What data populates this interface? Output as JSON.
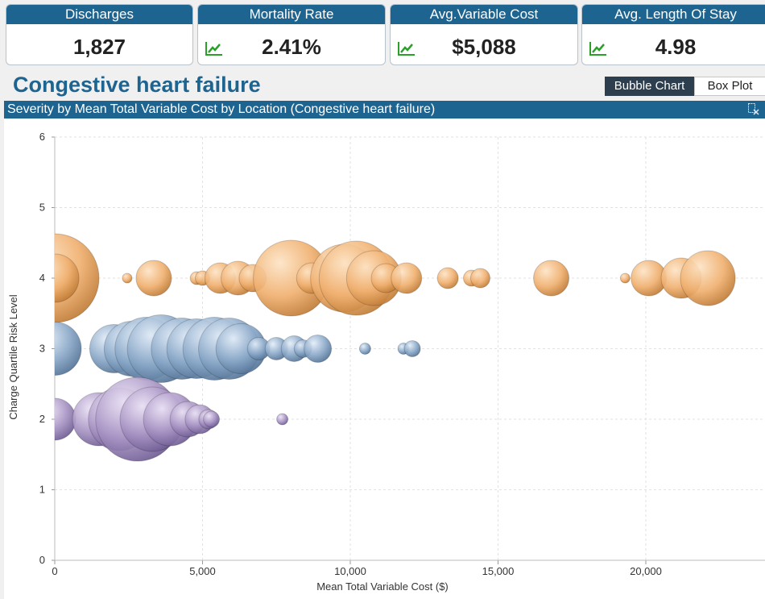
{
  "kpis": [
    {
      "label": "Discharges",
      "value": "1,827",
      "icon": null
    },
    {
      "label": "Mortality Rate",
      "value": "2.41%",
      "icon": "trend-up-icon"
    },
    {
      "label": "Avg.Variable Cost",
      "value": "$5,088",
      "icon": "trend-up-icon"
    },
    {
      "label": "Avg. Length Of Stay",
      "value": "4.98",
      "icon": "trend-up-icon"
    }
  ],
  "page_title": "Congestive heart failure",
  "view_toggle": {
    "bubble": "Bubble Chart",
    "box": "Box Plot",
    "active": "bubble"
  },
  "panel_title": "Severity by Mean Total Variable Cost by Location (Congestive heart failure)",
  "colors": {
    "accent": "#1d6490",
    "series4": "#f0b070",
    "series3": "#8aa8c8",
    "series2": "#a894c4",
    "trend": "#2aa02a"
  },
  "chart_data": {
    "type": "scatter",
    "title": "",
    "xlabel": "Mean Total Variable Cost ($)",
    "ylabel": "Charge Quartile Risk Level",
    "xlim": [
      0,
      24000
    ],
    "ylim": [
      0,
      6
    ],
    "xticks": [
      "0",
      "5,000",
      "10,000",
      "15,000",
      "20,000"
    ],
    "xtick_values": [
      0,
      5000,
      10000,
      15000,
      20000
    ],
    "yticks": [
      "0",
      "1",
      "2",
      "3",
      "4",
      "5",
      "6"
    ],
    "grid": true,
    "series": [
      {
        "level": 4,
        "color": "#f0b070",
        "points": [
          {
            "x": 0,
            "r": 55
          },
          {
            "x": 0,
            "r": 30
          },
          {
            "x": 2450,
            "r": 6
          },
          {
            "x": 3350,
            "r": 22
          },
          {
            "x": 4800,
            "r": 8
          },
          {
            "x": 5000,
            "r": 9
          },
          {
            "x": 5600,
            "r": 19
          },
          {
            "x": 6200,
            "r": 21
          },
          {
            "x": 6700,
            "r": 17
          },
          {
            "x": 8000,
            "r": 47
          },
          {
            "x": 8700,
            "r": 19
          },
          {
            "x": 9800,
            "r": 42
          },
          {
            "x": 10200,
            "r": 46
          },
          {
            "x": 10800,
            "r": 34
          },
          {
            "x": 11200,
            "r": 18
          },
          {
            "x": 11900,
            "r": 19
          },
          {
            "x": 13300,
            "r": 13
          },
          {
            "x": 14100,
            "r": 10
          },
          {
            "x": 14400,
            "r": 12
          },
          {
            "x": 16800,
            "r": 22
          },
          {
            "x": 19300,
            "r": 6
          },
          {
            "x": 20100,
            "r": 22
          },
          {
            "x": 21200,
            "r": 25
          },
          {
            "x": 22100,
            "r": 34
          }
        ]
      },
      {
        "level": 3,
        "color": "#8aa8c8",
        "points": [
          {
            "x": 0,
            "r": 33
          },
          {
            "x": 2000,
            "r": 30
          },
          {
            "x": 2600,
            "r": 34
          },
          {
            "x": 3100,
            "r": 39
          },
          {
            "x": 3600,
            "r": 42
          },
          {
            "x": 4300,
            "r": 38
          },
          {
            "x": 4800,
            "r": 37
          },
          {
            "x": 5400,
            "r": 39
          },
          {
            "x": 5900,
            "r": 38
          },
          {
            "x": 6300,
            "r": 31
          },
          {
            "x": 6900,
            "r": 14
          },
          {
            "x": 7500,
            "r": 14
          },
          {
            "x": 8100,
            "r": 16
          },
          {
            "x": 8400,
            "r": 11
          },
          {
            "x": 8900,
            "r": 17
          },
          {
            "x": 10500,
            "r": 7
          },
          {
            "x": 11800,
            "r": 7
          },
          {
            "x": 12100,
            "r": 10
          }
        ]
      },
      {
        "level": 2,
        "color": "#a894c4",
        "points": [
          {
            "x": 0,
            "r": 26
          },
          {
            "x": 1500,
            "r": 33
          },
          {
            "x": 2200,
            "r": 39
          },
          {
            "x": 2800,
            "r": 52
          },
          {
            "x": 3300,
            "r": 40
          },
          {
            "x": 3900,
            "r": 33
          },
          {
            "x": 4500,
            "r": 22
          },
          {
            "x": 4900,
            "r": 18
          },
          {
            "x": 5200,
            "r": 12
          },
          {
            "x": 5300,
            "r": 10
          },
          {
            "x": 7700,
            "r": 7
          }
        ]
      }
    ]
  }
}
